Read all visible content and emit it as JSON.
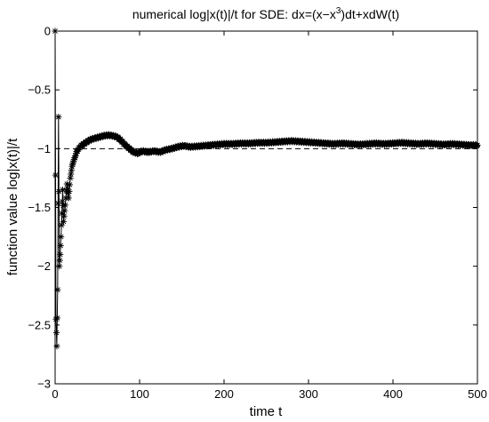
{
  "chart_data": {
    "type": "line",
    "title_parts": {
      "main": "numerical log|x(t)|/t for SDE: dx=(x−x",
      "superscript": "3",
      "tail": ")dt+xdW(t)"
    },
    "xlabel": "time t",
    "ylabel": "function value log|x(t)|/t",
    "xlim": [
      0,
      500
    ],
    "ylim": [
      -3,
      0
    ],
    "xticks": [
      0,
      100,
      200,
      300,
      400,
      500
    ],
    "xtick_labels": [
      "0",
      "100",
      "200",
      "300",
      "400",
      "500"
    ],
    "yticks": [
      0,
      -0.5,
      -1,
      -1.5,
      -2,
      -2.5,
      -3
    ],
    "ytick_labels": [
      "0",
      "−0.5",
      "−1",
      "−1.5",
      "−2",
      "−2.5",
      "−3"
    ],
    "grid": false,
    "reference_line": {
      "y": -1,
      "style": "dashed",
      "color": "#000000"
    },
    "series": [
      {
        "marker": "asterisk",
        "color": "#000000",
        "points": [
          [
            0,
            0
          ],
          [
            1,
            -2.45
          ],
          [
            2,
            -2.68
          ],
          [
            3,
            -2.2
          ],
          [
            4,
            -0.73
          ],
          [
            5,
            -2.0
          ],
          [
            6,
            -1.9
          ],
          [
            7,
            -1.75
          ],
          [
            8,
            -1.55
          ],
          [
            9,
            -1.35
          ],
          [
            10,
            -1.62
          ],
          [
            12,
            -1.48
          ],
          [
            14,
            -1.3
          ],
          [
            16,
            -1.42
          ],
          [
            18,
            -1.25
          ],
          [
            20,
            -1.15
          ],
          [
            23,
            -1.08
          ],
          [
            26,
            -1.02
          ],
          [
            30,
            -0.98
          ],
          [
            34,
            -0.96
          ],
          [
            38,
            -0.94
          ],
          [
            43,
            -0.92
          ],
          [
            48,
            -0.91
          ],
          [
            53,
            -0.9
          ],
          [
            58,
            -0.89
          ],
          [
            63,
            -0.885
          ],
          [
            68,
            -0.89
          ],
          [
            73,
            -0.9
          ],
          [
            78,
            -0.93
          ],
          [
            83,
            -0.97
          ],
          [
            88,
            -1.0
          ],
          [
            93,
            -1.03
          ],
          [
            98,
            -1.04
          ],
          [
            103,
            -1.02
          ],
          [
            110,
            -1.03
          ],
          [
            117,
            -1.02
          ],
          [
            124,
            -1.03
          ],
          [
            131,
            -1.01
          ],
          [
            138,
            -1.0
          ],
          [
            145,
            -0.985
          ],
          [
            152,
            -0.975
          ],
          [
            160,
            -0.985
          ],
          [
            168,
            -0.98
          ],
          [
            176,
            -0.975
          ],
          [
            184,
            -0.97
          ],
          [
            192,
            -0.965
          ],
          [
            200,
            -0.96
          ],
          [
            210,
            -0.96
          ],
          [
            220,
            -0.955
          ],
          [
            230,
            -0.955
          ],
          [
            240,
            -0.95
          ],
          [
            250,
            -0.95
          ],
          [
            260,
            -0.945
          ],
          [
            270,
            -0.94
          ],
          [
            280,
            -0.935
          ],
          [
            290,
            -0.94
          ],
          [
            300,
            -0.945
          ],
          [
            310,
            -0.95
          ],
          [
            320,
            -0.955
          ],
          [
            330,
            -0.96
          ],
          [
            340,
            -0.955
          ],
          [
            350,
            -0.96
          ],
          [
            360,
            -0.965
          ],
          [
            370,
            -0.96
          ],
          [
            380,
            -0.955
          ],
          [
            390,
            -0.96
          ],
          [
            400,
            -0.955
          ],
          [
            410,
            -0.95
          ],
          [
            420,
            -0.955
          ],
          [
            430,
            -0.96
          ],
          [
            440,
            -0.955
          ],
          [
            450,
            -0.96
          ],
          [
            460,
            -0.965
          ],
          [
            470,
            -0.96
          ],
          [
            480,
            -0.965
          ],
          [
            490,
            -0.97
          ],
          [
            500,
            -0.97
          ]
        ]
      }
    ]
  }
}
